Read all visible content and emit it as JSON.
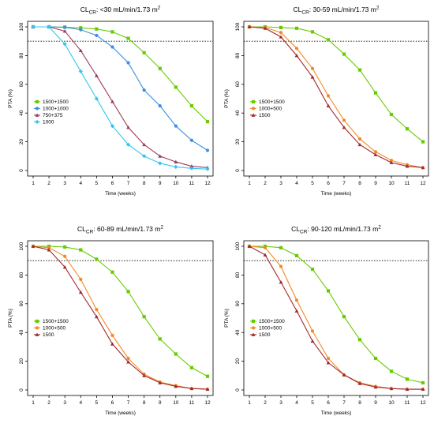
{
  "chart_data": [
    {
      "type": "line",
      "title": {
        "main": "CL",
        "sub": "CR",
        "rest": ": <30 mL/min/1.73 m",
        "sup": "2"
      },
      "xlabel": "Time (weeks)",
      "ylabel": "PTA (%)",
      "x": [
        1,
        2,
        3,
        4,
        5,
        6,
        7,
        8,
        9,
        10,
        11,
        12
      ],
      "xlim": [
        1,
        12
      ],
      "ylim": [
        0,
        100
      ],
      "yticks": [
        0,
        20,
        40,
        60,
        80,
        100
      ],
      "reference_line": 90,
      "legend_position": "center-left",
      "series": [
        {
          "name": "1500+1500",
          "color": "#66cc00",
          "marker": "square",
          "values": [
            100,
            100,
            99.8,
            99.3,
            98.5,
            96.5,
            92,
            82,
            71,
            58,
            45,
            34
          ]
        },
        {
          "name": "1000+1000",
          "color": "#3b8fe0",
          "marker": "circle",
          "values": [
            100,
            100,
            99.7,
            98,
            94,
            86,
            75,
            56,
            45,
            31,
            21,
            14
          ]
        },
        {
          "name": "750+375",
          "color": "#9b3a5a",
          "marker": "triangle",
          "values": [
            100,
            100,
            97,
            83.5,
            66,
            48,
            30,
            18,
            10,
            6,
            3,
            2
          ]
        },
        {
          "name": "1000",
          "color": "#33c6f0",
          "marker": "diamond",
          "values": [
            100,
            100,
            88,
            69,
            50,
            31,
            18,
            10,
            5,
            2.5,
            1.5,
            1
          ]
        }
      ]
    },
    {
      "type": "line",
      "title": {
        "main": "CL",
        "sub": "CR",
        "rest": ": 30-59 mL/min/1.73 m",
        "sup": "2"
      },
      "xlabel": "Time (weeks)",
      "ylabel": "PTA (%)",
      "x": [
        1,
        2,
        3,
        4,
        5,
        6,
        7,
        8,
        9,
        10,
        11,
        12
      ],
      "xlim": [
        1,
        12
      ],
      "ylim": [
        0,
        100
      ],
      "yticks": [
        0,
        20,
        40,
        60,
        80,
        100
      ],
      "reference_line": 90,
      "legend_position": "center-left",
      "series": [
        {
          "name": "1500+1500",
          "color": "#66cc00",
          "marker": "square",
          "values": [
            100,
            100,
            99.5,
            99,
            96.5,
            91,
            81,
            70,
            54,
            39,
            29,
            20
          ]
        },
        {
          "name": "1000+500",
          "color": "#f08a24",
          "marker": "circle",
          "values": [
            100,
            99.5,
            96,
            85,
            71,
            52,
            35,
            22,
            13,
            7,
            4,
            2
          ]
        },
        {
          "name": "1500",
          "color": "#a3282e",
          "marker": "triangle",
          "values": [
            100,
            99,
            93,
            80,
            65,
            45,
            30,
            18,
            11,
            5.5,
            3,
            2
          ]
        }
      ]
    },
    {
      "type": "line",
      "title": {
        "main": "CL",
        "sub": "CR",
        "rest": ": 60-89 mL/min/1.73 m",
        "sup": "2"
      },
      "xlabel": "Time (weeks)",
      "ylabel": "PTA (%)",
      "x": [
        1,
        2,
        3,
        4,
        5,
        6,
        7,
        8,
        9,
        10,
        11,
        12
      ],
      "xlim": [
        1,
        12
      ],
      "ylim": [
        0,
        100
      ],
      "yticks": [
        0,
        20,
        40,
        60,
        80,
        100
      ],
      "reference_line": 90,
      "legend_position": "center-left",
      "series": [
        {
          "name": "1500+1500",
          "color": "#66cc00",
          "marker": "square",
          "values": [
            100,
            100,
            99.5,
            97.5,
            91,
            82,
            68.5,
            51,
            35.5,
            25,
            15.5,
            9.5
          ]
        },
        {
          "name": "1000+500",
          "color": "#f08a24",
          "marker": "circle",
          "values": [
            100,
            99,
            93,
            77,
            56,
            38,
            22,
            11,
            5.5,
            3,
            1,
            0.5
          ]
        },
        {
          "name": "1500",
          "color": "#a3282e",
          "marker": "triangle",
          "values": [
            100,
            97.5,
            85.5,
            68,
            51,
            32,
            19.5,
            10,
            5,
            2.5,
            1,
            0.5
          ]
        }
      ]
    },
    {
      "type": "line",
      "title": {
        "main": "CL",
        "sub": "CR",
        "rest": ": 90-120 mL/min/1.73 m",
        "sup": "2"
      },
      "xlabel": "Time (weeks)",
      "ylabel": "PTA (%)",
      "x": [
        1,
        2,
        3,
        4,
        5,
        6,
        7,
        8,
        9,
        10,
        11,
        12
      ],
      "xlim": [
        1,
        12
      ],
      "ylim": [
        0,
        100
      ],
      "yticks": [
        0,
        20,
        40,
        60,
        80,
        100
      ],
      "reference_line": 90,
      "legend_position": "center-left",
      "series": [
        {
          "name": "1500+1500",
          "color": "#66cc00",
          "marker": "square",
          "values": [
            100,
            100,
            99,
            93.5,
            84,
            69,
            51,
            35,
            22,
            13,
            7.5,
            5
          ]
        },
        {
          "name": "1000+500",
          "color": "#f08a24",
          "marker": "circle",
          "values": [
            100,
            99,
            86,
            62.5,
            41,
            22,
            10.5,
            5,
            2.5,
            1,
            0.5,
            0.5
          ]
        },
        {
          "name": "1500",
          "color": "#a3282e",
          "marker": "triangle",
          "values": [
            100,
            94,
            75,
            55,
            34,
            19,
            10.5,
            4.5,
            2,
            1,
            0.5,
            0.5
          ]
        }
      ]
    }
  ]
}
